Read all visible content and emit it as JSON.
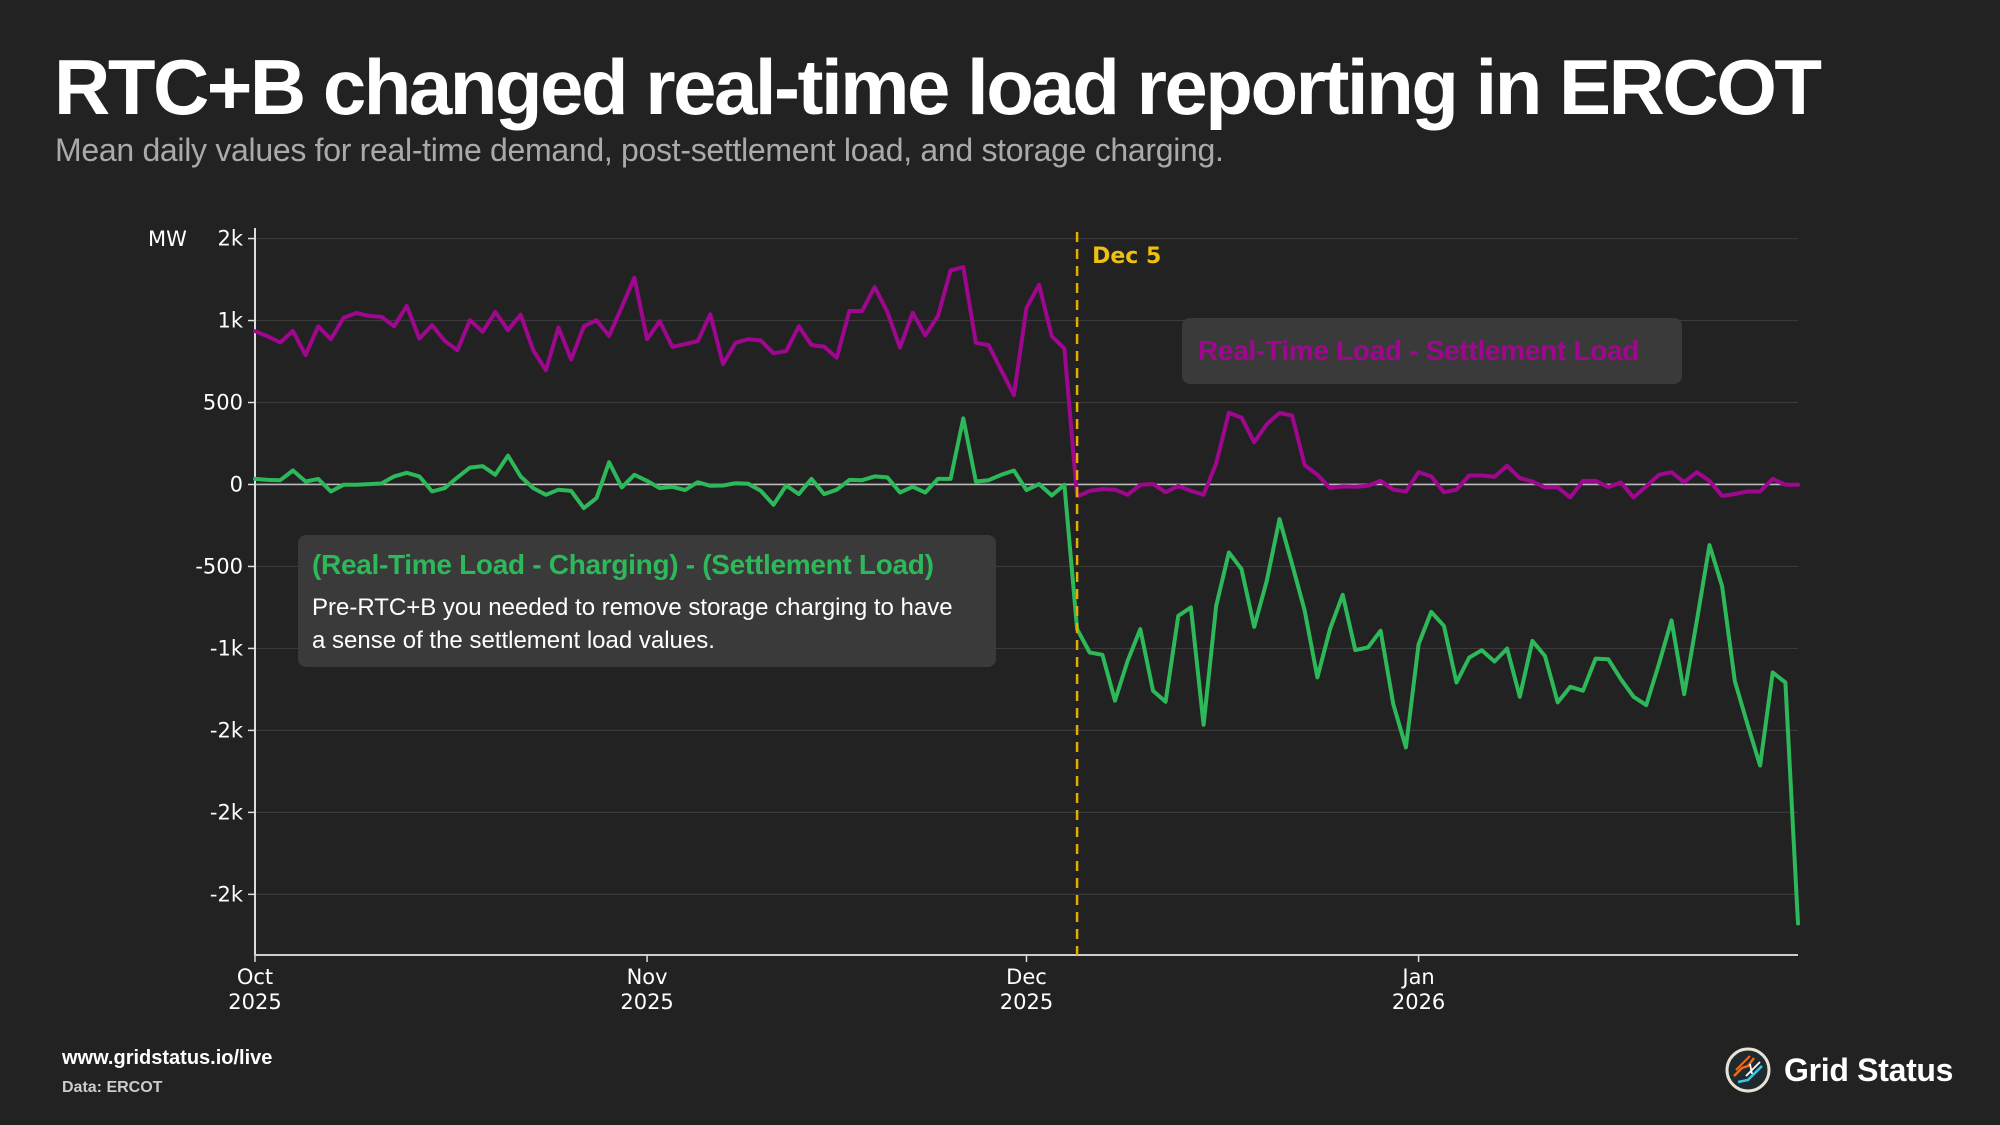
{
  "header": {
    "title": "RTC+B changed real-time load reporting in ERCOT",
    "subtitle": "Mean daily values for real-time demand, post-settlement load, and storage charging."
  },
  "annotations": {
    "event": {
      "label": "Dec 5",
      "date": "2025-12-05",
      "color": "#e6ac00"
    },
    "purple": {
      "label": "Real-Time Load - Settlement Load"
    },
    "green": {
      "label": "(Real-Time Load - Charging) - (Settlement Load)",
      "note": "Pre-RTC+B you needed to remove storage charging to have a sense of the settlement load values."
    }
  },
  "footer": {
    "url": "www.gridstatus.io/live",
    "source": "Data: ERCOT",
    "brand": "Grid Status",
    "brand_icon": "grid-status-logo-icon"
  },
  "chart_data": {
    "type": "line",
    "title": "RTC+B changed real-time load reporting in ERCOT",
    "xlabel": "",
    "ylabel": "MW",
    "x_start": "2025-10-01",
    "x_end": "2026-01-31",
    "x_step": "1 day",
    "xticks": [
      {
        "label": [
          "Oct",
          "2025"
        ],
        "day_index": 0
      },
      {
        "label": [
          "Nov",
          "2025"
        ],
        "day_index": 31
      },
      {
        "label": [
          "Dec",
          "2025"
        ],
        "day_index": 61
      },
      {
        "label": [
          "Jan",
          "2026"
        ],
        "day_index": 92
      }
    ],
    "yticks": [
      {
        "value": 1500,
        "label": "2k"
      },
      {
        "value": 1000,
        "label": "1k"
      },
      {
        "value": 500,
        "label": "500"
      },
      {
        "value": 0,
        "label": "0"
      },
      {
        "value": -500,
        "label": "-500"
      },
      {
        "value": -1000,
        "label": "-1k"
      },
      {
        "value": -1500,
        "label": "-2k"
      },
      {
        "value": -2000,
        "label": "-2k"
      },
      {
        "value": -2500,
        "label": "-2k"
      }
    ],
    "ylim": [
      -2870,
      1540
    ],
    "grid": true,
    "legend": "inline annotations",
    "vline": {
      "day_index": 65,
      "label": "Dec 5"
    },
    "series": [
      {
        "name": "Real-Time Load - Settlement Load",
        "color": "#a0078f",
        "values": [
          935,
          904,
          866,
          937,
          789,
          965,
          886,
          1016,
          1046,
          1028,
          1022,
          965,
          1089,
          890,
          971,
          876,
          819,
          1002,
          931,
          1052,
          941,
          1036,
          819,
          697,
          957,
          762,
          965,
          1002,
          906,
          1083,
          1261,
          886,
          996,
          839,
          856,
          874,
          1038,
          734,
          864,
          886,
          878,
          801,
          813,
          965,
          850,
          841,
          773,
          1058,
          1058,
          1204,
          1052,
          835,
          1048,
          910,
          1028,
          1306,
          1326,
          864,
          850,
          697,
          545,
          1077,
          1218,
          904,
          829,
          -73,
          -39,
          -28,
          -32,
          -63,
          -2,
          2,
          -47,
          -10,
          -39,
          -63,
          130,
          438,
          408,
          258,
          367,
          436,
          420,
          118,
          59,
          -22,
          -12,
          -14,
          -8,
          22,
          -32,
          -43,
          75,
          49,
          -47,
          -32,
          55,
          55,
          47,
          114,
          39,
          18,
          -18,
          -18,
          -79,
          22,
          22,
          -16,
          12,
          -79,
          -12,
          59,
          75,
          14,
          75,
          22,
          -69,
          -59,
          -43,
          -43,
          34,
          -2,
          -2
        ]
      },
      {
        "name": "(Real-Time Load - Charging) - (Settlement Load)",
        "color": "#2db85a",
        "values": [
          34,
          28,
          26,
          85,
          18,
          34,
          -43,
          -2,
          -2,
          2,
          6,
          49,
          71,
          49,
          -43,
          -22,
          43,
          103,
          112,
          59,
          176,
          49,
          -22,
          -63,
          -32,
          -39,
          -144,
          -83,
          136,
          -18,
          59,
          22,
          -22,
          -14,
          -34,
          14,
          -8,
          -6,
          8,
          4,
          -39,
          -124,
          -6,
          -59,
          34,
          -59,
          -32,
          28,
          26,
          49,
          43,
          -49,
          -14,
          -49,
          34,
          34,
          403,
          18,
          26,
          59,
          85,
          -34,
          2,
          -67,
          -2,
          -882,
          -1025,
          -1039,
          -1319,
          -1075,
          -882,
          -1258,
          -1325,
          -801,
          -750,
          -1466,
          -740,
          -415,
          -516,
          -868,
          -587,
          -211,
          -486,
          -770,
          -1177,
          -882,
          -673,
          -1010,
          -994,
          -892,
          -1340,
          -1604,
          -974,
          -777,
          -862,
          -1208,
          -1056,
          -1011,
          -1080,
          -1001,
          -1295,
          -954,
          -1046,
          -1329,
          -1234,
          -1258,
          -1062,
          -1066,
          -1188,
          -1295,
          -1346,
          -1096,
          -829,
          -1279,
          -833,
          -370,
          -620,
          -1198,
          -1461,
          -1715,
          -1147,
          -1208,
          -2678
        ]
      }
    ]
  }
}
